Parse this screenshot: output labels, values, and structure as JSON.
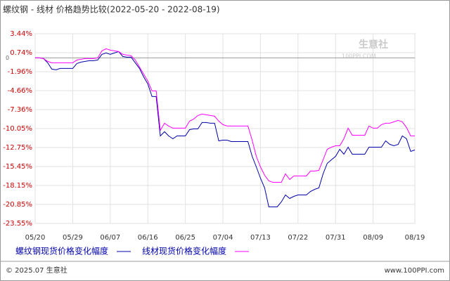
{
  "chart_data": {
    "type": "line",
    "title": "螺纹钢 - 线材 价格趋势比较(2022-05-20 - 2022-08-19)",
    "watermark": [
      "生意社",
      "100PPI.COM"
    ],
    "footer": {
      "left": "© 2025.07 生意社",
      "right": "www.100PPI.com"
    },
    "categories": [
      "05/20",
      null,
      null,
      null,
      null,
      null,
      null,
      null,
      null,
      "05/29",
      null,
      null,
      null,
      null,
      null,
      null,
      null,
      null,
      "06/07",
      null,
      null,
      null,
      null,
      null,
      null,
      null,
      null,
      "06/16",
      null,
      null,
      null,
      null,
      null,
      null,
      null,
      null,
      "06/25",
      null,
      null,
      null,
      null,
      null,
      null,
      null,
      null,
      "07/04",
      null,
      null,
      null,
      null,
      null,
      null,
      null,
      null,
      "07/13",
      null,
      null,
      null,
      null,
      null,
      null,
      null,
      null,
      "07/22",
      null,
      null,
      null,
      null,
      null,
      null,
      null,
      null,
      "07/31",
      null,
      null,
      null,
      null,
      null,
      null,
      null,
      null,
      "08/09",
      null,
      null,
      null,
      null,
      null,
      null,
      null,
      null,
      null,
      "08/19"
    ],
    "series": [
      {
        "name": "螺纹钢现货价格变化幅度",
        "color": "#0000aa",
        "values": [
          0,
          0,
          -0.1,
          -0.7,
          -1.6,
          -1.7,
          -1.5,
          -1.5,
          -1.5,
          -1.5,
          -0.8,
          -0.6,
          -0.5,
          -0.4,
          -0.4,
          -0.3,
          0.5,
          0.7,
          0.5,
          0.7,
          0.9,
          0.2,
          0.1,
          0.1,
          -0.7,
          -1.5,
          -2.7,
          -3.7,
          -5.5,
          -5.5,
          -11.1,
          -10.5,
          -11.1,
          -11.5,
          -11.1,
          -11.1,
          -11.1,
          -10.2,
          -10.1,
          -10.1,
          -9.2,
          -9.2,
          -9.3,
          -9.3,
          -11.8,
          -11.7,
          -11.7,
          -11.9,
          -11.9,
          -11.9,
          -11.9,
          -11.9,
          -14,
          -15.5,
          -17.1,
          -18.5,
          -21.2,
          -21.2,
          -21.2,
          -20.5,
          -19.5,
          -20,
          -19.7,
          -19.5,
          -19.5,
          -19.5,
          -19,
          -18.7,
          -18.5,
          -16.5,
          -15,
          -14.5,
          -14,
          -13,
          -13.7,
          -12.7,
          -13.7,
          -13.7,
          -13.7,
          -13.7,
          -12.7,
          -12.7,
          -12.7,
          -12.7,
          -11.8,
          -12.3,
          -12.5,
          -12.3,
          -11.1,
          -11.5,
          -13.3,
          -13.1
        ]
      },
      {
        "name": "线材现货价格变化幅度",
        "color": "#ff00ff",
        "values": [
          0,
          0,
          -0.1,
          -0.5,
          -0.7,
          -0.7,
          -0.7,
          -0.7,
          -0.7,
          -0.7,
          -0.3,
          -0.2,
          -0.1,
          -0.1,
          -0.1,
          0,
          1,
          1.3,
          1.1,
          1,
          0.9,
          0.5,
          0.4,
          0.3,
          -0.3,
          -1.3,
          -2.3,
          -3.3,
          -4.7,
          -4.7,
          -10.3,
          -9.3,
          -9.7,
          -10,
          -10,
          -10,
          -10,
          -9,
          -8.7,
          -8.2,
          -8,
          -8.1,
          -8.2,
          -8.3,
          -9,
          -9.5,
          -9.7,
          -9.7,
          -9.7,
          -9.7,
          -9.7,
          -9.7,
          -11.7,
          -14,
          -15.5,
          -16.7,
          -17.5,
          -17.7,
          -17.7,
          -17.7,
          -16.5,
          -17.3,
          -16.8,
          -16.8,
          -16.8,
          -16.8,
          -16.1,
          -16.1,
          -16,
          -14.5,
          -13,
          -12.7,
          -12.5,
          -12.5,
          -11.5,
          -10,
          -11,
          -11,
          -11,
          -11,
          -9.7,
          -10,
          -10,
          -9.5,
          -9.3,
          -9.3,
          -9.1,
          -8.9,
          -9.1,
          -9.9,
          -11.1,
          -11.1
        ]
      }
    ],
    "ylim": [
      -23.55,
      3.44
    ],
    "yticks": [
      {
        "value": 3.44,
        "label": "3.44%"
      },
      {
        "value": 0.74,
        "label": "0.74%"
      },
      {
        "value": -1.96,
        "label": "-1.96%"
      },
      {
        "value": -4.66,
        "label": "-4.66%"
      },
      {
        "value": -7.36,
        "label": "-7.36%"
      },
      {
        "value": -10.05,
        "label": "-10.05%"
      },
      {
        "value": -12.75,
        "label": "-12.75%"
      },
      {
        "value": -15.45,
        "label": "-15.45%"
      },
      {
        "value": -18.15,
        "label": "-18.15%"
      },
      {
        "value": -20.85,
        "label": "-20.85%"
      },
      {
        "value": -23.55,
        "label": "-23.55%"
      }
    ],
    "zero_line": 0,
    "grid": true
  }
}
